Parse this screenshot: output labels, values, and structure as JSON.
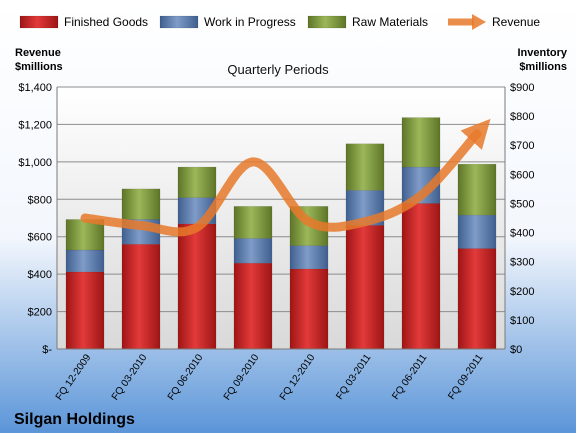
{
  "company": "Silgan Holdings",
  "chart_data": {
    "type": "bar",
    "subtitle": "Quarterly Periods",
    "left_axis_label": [
      "Revenue",
      "$millions"
    ],
    "right_axis_label": [
      "Inventory",
      "$millions"
    ],
    "categories": [
      "FQ 12-2009",
      "FQ 03-2010",
      "FQ 06-2010",
      "FQ 09-2010",
      "FQ 12-2010",
      "FQ 03-2011",
      "FQ 06-2011",
      "FQ 09-2011"
    ],
    "left_ticks": [
      "$-",
      "$200",
      "$400",
      "$600",
      "$800",
      "$1,000",
      "$1,200",
      "$1,400"
    ],
    "right_ticks": [
      "$0",
      "$100",
      "$200",
      "$300",
      "$400",
      "$500",
      "$600",
      "$700",
      "$800",
      "$900"
    ],
    "ylim_left": [
      0,
      1400
    ],
    "ylim_right": [
      0,
      900
    ],
    "legend_position": "top",
    "grid": true,
    "series": [
      {
        "name": "Finished Goods",
        "kind": "bar",
        "axis": "right",
        "color": "#cc1f1f",
        "values": [
          265,
          360,
          430,
          295,
          275,
          425,
          500,
          345
        ]
      },
      {
        "name": "Work in Progress",
        "kind": "bar",
        "axis": "right",
        "color": "#5a7cae",
        "values": [
          75,
          85,
          90,
          85,
          80,
          120,
          125,
          115
        ]
      },
      {
        "name": "Raw Materials",
        "kind": "bar",
        "axis": "right",
        "color": "#7e9a3a",
        "values": [
          105,
          105,
          105,
          110,
          135,
          160,
          170,
          175
        ]
      },
      {
        "name": "Revenue",
        "kind": "line",
        "axis": "left",
        "color": "#e8792a",
        "values": [
          700,
          660,
          650,
          1000,
          680,
          680,
          820,
          1150
        ]
      }
    ]
  }
}
